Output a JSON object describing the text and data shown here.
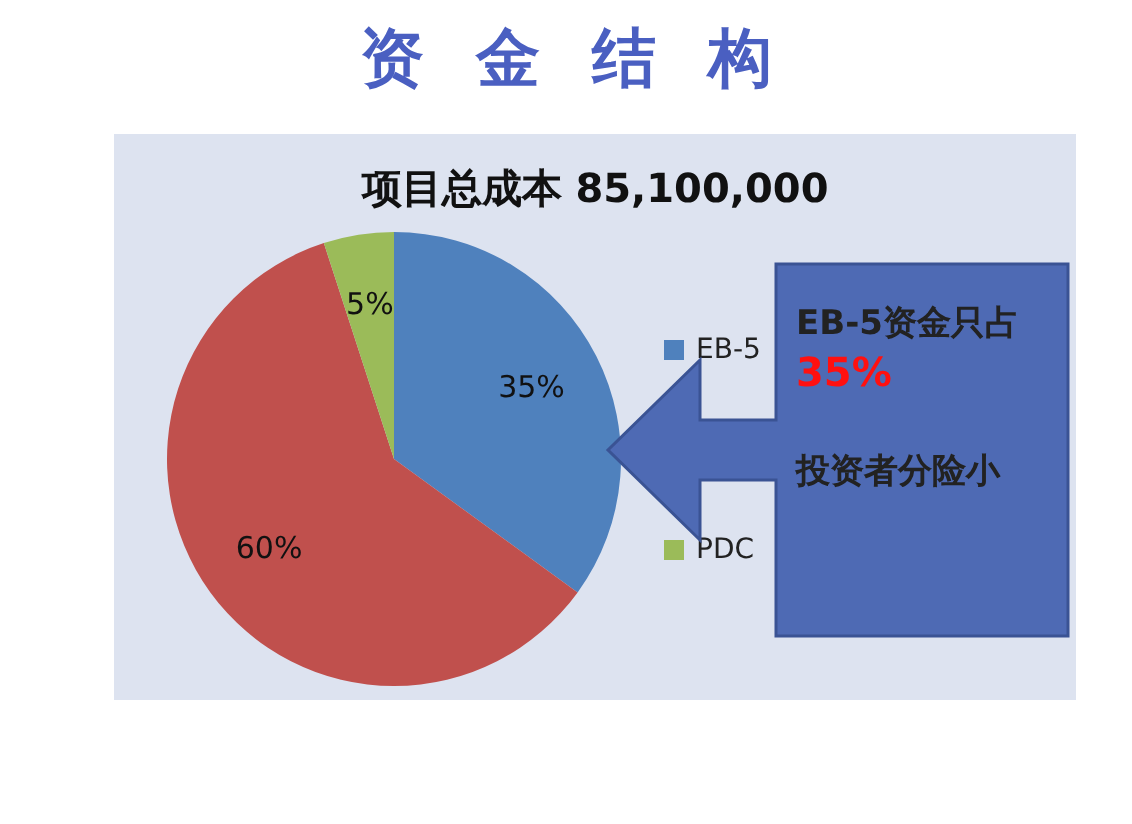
{
  "chart_data": {
    "type": "pie",
    "title": "资金结构",
    "subtitle": "项目总成本 85,100,000",
    "categories": [
      "EB-5",
      null,
      "PDC"
    ],
    "values": [
      35,
      60,
      5
    ],
    "colors": [
      "#4f81bd",
      "#c0504d",
      "#9bbb59"
    ],
    "value_labels": [
      "35%",
      "60%",
      "5%"
    ],
    "legend": "right",
    "annotations": [
      "EB-5资金只占",
      "35%",
      "投资者分险小"
    ]
  }
}
